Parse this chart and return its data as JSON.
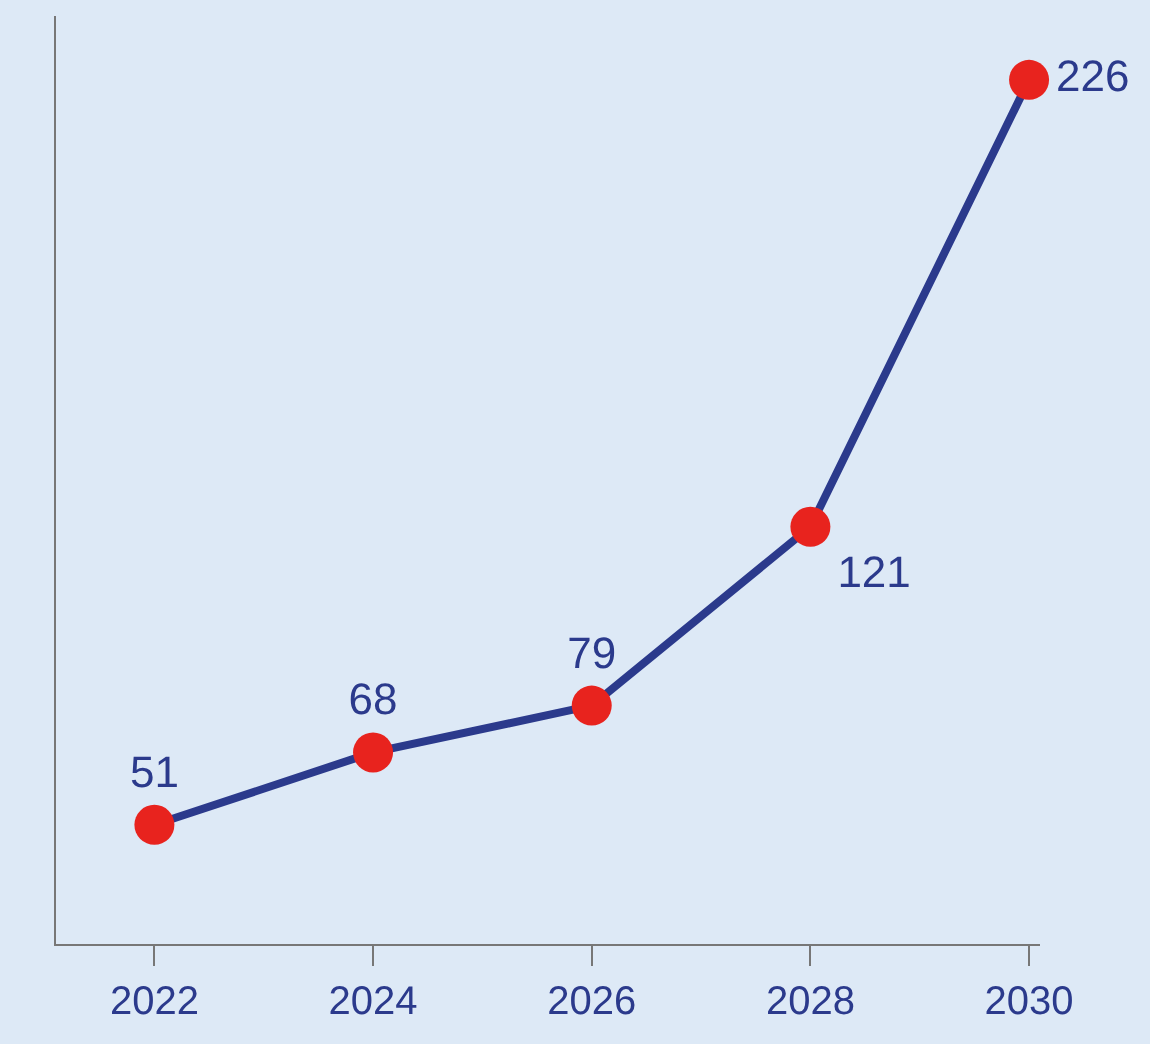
{
  "chart_data": {
    "type": "line",
    "categories": [
      "2022",
      "2024",
      "2026",
      "2028",
      "2030"
    ],
    "series": [
      {
        "color": "#2b3a8c",
        "colors": [
          "#e8231e",
          "#e8231e",
          "#e8231e",
          "#e8231e",
          "#e8231e"
        ],
        "values": [
          51,
          68,
          79,
          121,
          226
        ]
      }
    ],
    "ylim": [
      23,
      241
    ],
    "tick_labels": "x",
    "marker": "circle",
    "line_style": "solid",
    "data_labels": true
  }
}
